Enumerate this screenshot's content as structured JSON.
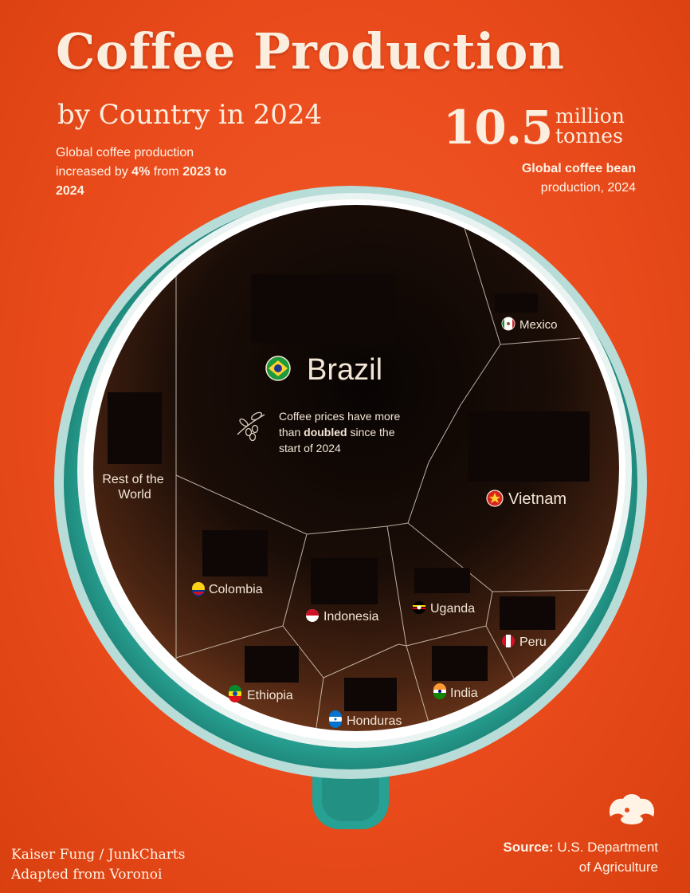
{
  "header": {
    "title": "Coffee Production",
    "subtitle": "by Country in 2024",
    "note_prefix": "Global coffee production increased by",
    "note_pct": "4%",
    "note_mid": "from",
    "note_years": "2023 to 2024"
  },
  "headline_stat": {
    "value": "10.5",
    "unit_line1": "million",
    "unit_line2": "tonnes",
    "caption_bold": "Global coffee bean",
    "caption_rest": "production, 2024"
  },
  "annotation": {
    "prefix": "Coffee prices have more than",
    "bold": "doubled",
    "suffix": "since the start of 2024"
  },
  "regions": [
    {
      "name": "Brazil"
    },
    {
      "name": "Vietnam"
    },
    {
      "name": "Mexico"
    },
    {
      "name": "Rest of the World"
    },
    {
      "name": "Colombia"
    },
    {
      "name": "Indonesia"
    },
    {
      "name": "Uganda"
    },
    {
      "name": "Peru"
    },
    {
      "name": "Ethiopia"
    },
    {
      "name": "Honduras"
    },
    {
      "name": "India"
    }
  ],
  "footer": {
    "credit_line1": "Kaiser Fung / JunkCharts",
    "credit_line2": "Adapted from Voronoi",
    "source_label": "Source:",
    "source_line1": "U.S. Department",
    "source_line2": "of Agriculture"
  },
  "colors": {
    "background": "#ea4b1c",
    "cup": "#2aa596",
    "coffee": "#1a0f0a",
    "text": "#fbeede"
  }
}
